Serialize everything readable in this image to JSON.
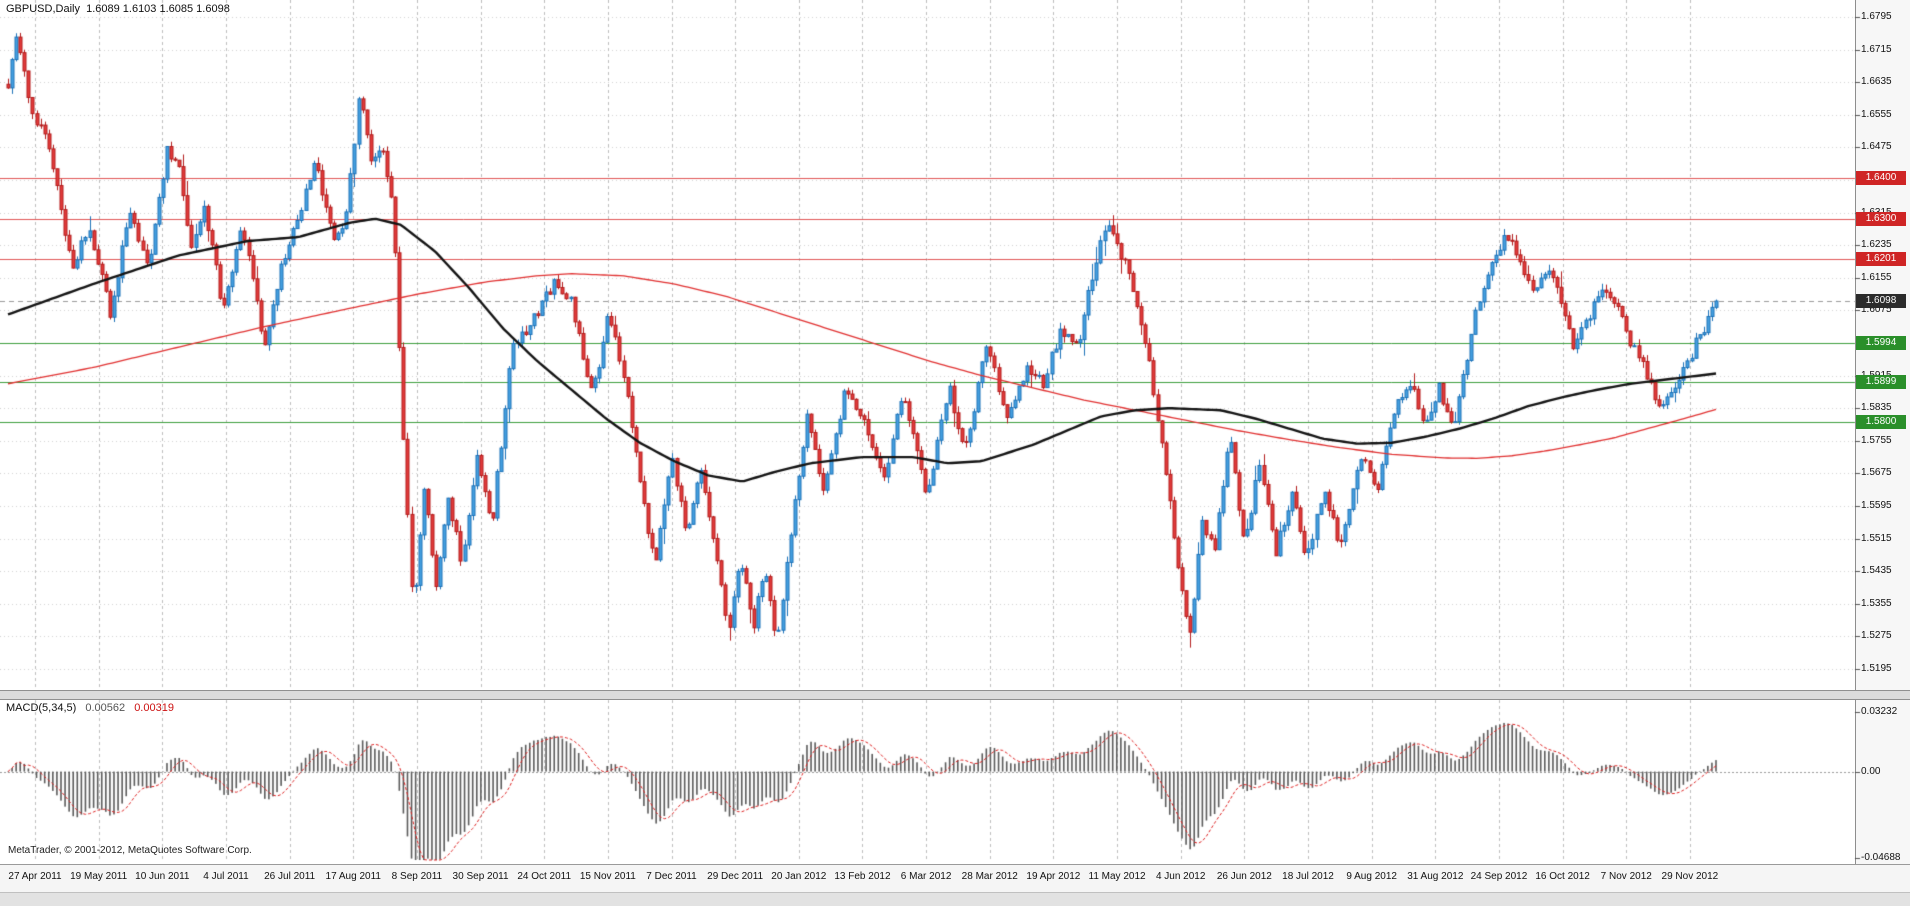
{
  "chart_data": {
    "type": "candlestick",
    "symbol": "GBPUSD",
    "timeframe": "Daily",
    "title_line": "GBPUSD,Daily  1.6089 1.6103 1.6085 1.6098",
    "ohlc": {
      "open": "1.6089",
      "high": "1.6103",
      "low": "1.6085",
      "close": "1.6098"
    },
    "copyright": "MetaTrader, © 2001-2012, MetaQuotes Software Corp.",
    "num_candles": 420,
    "price_axis": {
      "min": 1.5195,
      "max": 1.6795,
      "grid_step": 0.008,
      "tick_labels": [
        "1.6795",
        "1.6715",
        "1.6635",
        "1.6555",
        "1.6475",
        "1.6315",
        "1.6235",
        "1.6155",
        "1.6075",
        "1.5915",
        "1.5835",
        "1.5755",
        "1.5675",
        "1.5595",
        "1.5515",
        "1.5435",
        "1.5355",
        "1.5275",
        "1.5195"
      ]
    },
    "levels": [
      {
        "price": 1.64,
        "label": "1.6400",
        "line_color": "#e05555",
        "box_color": "#cf2525",
        "kind": "resistance"
      },
      {
        "price": 1.63,
        "label": "1.6300",
        "line_color": "#e05555",
        "box_color": "#cf2525",
        "kind": "resistance"
      },
      {
        "price": 1.6201,
        "label": "1.6201",
        "line_color": "#e05555",
        "box_color": "#cf2525",
        "kind": "resistance"
      },
      {
        "price": 1.5994,
        "label": "1.5994",
        "line_color": "#3d9e3d",
        "box_color": "#2a8f2a",
        "kind": "support"
      },
      {
        "price": 1.5899,
        "label": "1.5899",
        "line_color": "#3d9e3d",
        "box_color": "#2a8f2a",
        "kind": "support"
      },
      {
        "price": 1.58,
        "label": "1.5800",
        "line_color": "#3d9e3d",
        "box_color": "#2a8f2a",
        "kind": "support"
      }
    ],
    "current_price": {
      "value": 1.6098,
      "label": "1.6098",
      "box_color": "#2b2b2b",
      "line_color": "#9a9a9a"
    },
    "dates": [
      "27 Apr 2011",
      "19 May 2011",
      "10 Jun 2011",
      "4 Jul 2011",
      "26 Jul 2011",
      "17 Aug 2011",
      "8 Sep 2011",
      "30 Sep 2011",
      "24 Oct 2011",
      "15 Nov 2011",
      "7 Dec 2011",
      "29 Dec 2011",
      "20 Jan 2012",
      "13 Feb 2012",
      "6 Mar 2012",
      "28 Mar 2012",
      "19 Apr 2012",
      "11 May 2012",
      "4 Jun 2012",
      "26 Jun 2012",
      "18 Jul 2012",
      "9 Aug 2012",
      "31 Aug 2012",
      "24 Sep 2012",
      "16 Oct 2012",
      "7 Nov 2012",
      "29 Nov 2012"
    ],
    "colors": {
      "up_fill": "#46a0e0",
      "up_border": "#1c72b8",
      "down_fill": "#e23b3b",
      "down_border": "#b31d1d",
      "ma_black": "#141414",
      "ma_red": "#e03030",
      "grid_v": "#bdbdbd",
      "grid_h": "#d0d0d0",
      "macd_hist": "#5a5a5a",
      "macd_signal": "#dd2222",
      "axis_text": "#111111"
    },
    "price_path": [
      [
        0.0,
        1.663
      ],
      [
        0.005,
        1.6745
      ],
      [
        0.014,
        1.656
      ],
      [
        0.022,
        1.651
      ],
      [
        0.038,
        1.617
      ],
      [
        0.047,
        1.629
      ],
      [
        0.06,
        1.6065
      ],
      [
        0.071,
        1.632
      ],
      [
        0.082,
        1.618
      ],
      [
        0.093,
        1.647
      ],
      [
        0.1,
        1.642
      ],
      [
        0.107,
        1.622
      ],
      [
        0.115,
        1.633
      ],
      [
        0.126,
        1.6075
      ],
      [
        0.137,
        1.628
      ],
      [
        0.15,
        1.599
      ],
      [
        0.16,
        1.618
      ],
      [
        0.17,
        1.63
      ],
      [
        0.18,
        1.644
      ],
      [
        0.19,
        1.625
      ],
      [
        0.198,
        1.63
      ],
      [
        0.206,
        1.6618
      ],
      [
        0.212,
        1.645
      ],
      [
        0.219,
        1.648
      ],
      [
        0.226,
        1.63
      ],
      [
        0.231,
        1.58
      ],
      [
        0.237,
        1.5335
      ],
      [
        0.244,
        1.565
      ],
      [
        0.25,
        1.539
      ],
      [
        0.258,
        1.561
      ],
      [
        0.266,
        1.545
      ],
      [
        0.274,
        1.572
      ],
      [
        0.283,
        1.554
      ],
      [
        0.295,
        1.598
      ],
      [
        0.308,
        1.606
      ],
      [
        0.32,
        1.614
      ],
      [
        0.33,
        1.609
      ],
      [
        0.342,
        1.586
      ],
      [
        0.352,
        1.607
      ],
      [
        0.362,
        1.589
      ],
      [
        0.372,
        1.56
      ],
      [
        0.379,
        1.544
      ],
      [
        0.388,
        1.572
      ],
      [
        0.397,
        1.553
      ],
      [
        0.406,
        1.57
      ],
      [
        0.414,
        1.548
      ],
      [
        0.422,
        1.529
      ],
      [
        0.429,
        1.547
      ],
      [
        0.436,
        1.529
      ],
      [
        0.443,
        1.546
      ],
      [
        0.45,
        1.524
      ],
      [
        0.458,
        1.552
      ],
      [
        0.468,
        1.583
      ],
      [
        0.477,
        1.563
      ],
      [
        0.49,
        1.588
      ],
      [
        0.502,
        1.579
      ],
      [
        0.513,
        1.566
      ],
      [
        0.524,
        1.588
      ],
      [
        0.538,
        1.5625
      ],
      [
        0.551,
        1.588
      ],
      [
        0.56,
        1.572
      ],
      [
        0.573,
        1.5995
      ],
      [
        0.584,
        1.5815
      ],
      [
        0.597,
        1.594
      ],
      [
        0.606,
        1.589
      ],
      [
        0.616,
        1.603
      ],
      [
        0.626,
        1.598
      ],
      [
        0.636,
        1.618
      ],
      [
        0.644,
        1.6298
      ],
      [
        0.652,
        1.621
      ],
      [
        0.66,
        1.612
      ],
      [
        0.668,
        1.595
      ],
      [
        0.677,
        1.57
      ],
      [
        0.685,
        1.545
      ],
      [
        0.692,
        1.527
      ],
      [
        0.699,
        1.556
      ],
      [
        0.706,
        1.548
      ],
      [
        0.715,
        1.577
      ],
      [
        0.724,
        1.55
      ],
      [
        0.733,
        1.571
      ],
      [
        0.742,
        1.548
      ],
      [
        0.752,
        1.563
      ],
      [
        0.76,
        1.546
      ],
      [
        0.77,
        1.564
      ],
      [
        0.78,
        1.549
      ],
      [
        0.792,
        1.572
      ],
      [
        0.801,
        1.563
      ],
      [
        0.812,
        1.583
      ],
      [
        0.82,
        1.5905
      ],
      [
        0.83,
        1.58
      ],
      [
        0.838,
        1.5885
      ],
      [
        0.846,
        1.577
      ],
      [
        0.858,
        1.605
      ],
      [
        0.868,
        1.618
      ],
      [
        0.877,
        1.627
      ],
      [
        0.884,
        1.62
      ],
      [
        0.893,
        1.612
      ],
      [
        0.9,
        1.618
      ],
      [
        0.908,
        1.613
      ],
      [
        0.916,
        1.5985
      ],
      [
        0.925,
        1.606
      ],
      [
        0.933,
        1.613
      ],
      [
        0.941,
        1.609
      ],
      [
        0.95,
        1.6
      ],
      [
        0.958,
        1.593
      ],
      [
        0.966,
        1.5835
      ],
      [
        0.974,
        1.587
      ],
      [
        0.982,
        1.594
      ],
      [
        0.99,
        1.601
      ],
      [
        1.0,
        1.6098
      ]
    ],
    "black_ma_path": [
      [
        0.0,
        1.6065
      ],
      [
        0.05,
        1.614
      ],
      [
        0.1,
        1.621
      ],
      [
        0.14,
        1.6245
      ],
      [
        0.17,
        1.6255
      ],
      [
        0.2,
        1.629
      ],
      [
        0.215,
        1.63
      ],
      [
        0.23,
        1.6285
      ],
      [
        0.25,
        1.622
      ],
      [
        0.27,
        1.613
      ],
      [
        0.29,
        1.603
      ],
      [
        0.31,
        1.595
      ],
      [
        0.33,
        1.588
      ],
      [
        0.35,
        1.581
      ],
      [
        0.37,
        1.575
      ],
      [
        0.39,
        1.5705
      ],
      [
        0.41,
        1.567
      ],
      [
        0.43,
        1.5655
      ],
      [
        0.45,
        1.568
      ],
      [
        0.47,
        1.57
      ],
      [
        0.5,
        1.5715
      ],
      [
        0.53,
        1.5715
      ],
      [
        0.55,
        1.57
      ],
      [
        0.57,
        1.5705
      ],
      [
        0.6,
        1.5745
      ],
      [
        0.62,
        1.578
      ],
      [
        0.64,
        1.5815
      ],
      [
        0.66,
        1.583
      ],
      [
        0.68,
        1.5835
      ],
      [
        0.71,
        1.583
      ],
      [
        0.73,
        1.581
      ],
      [
        0.75,
        1.5785
      ],
      [
        0.77,
        1.576
      ],
      [
        0.79,
        1.5748
      ],
      [
        0.81,
        1.575
      ],
      [
        0.83,
        1.5765
      ],
      [
        0.85,
        1.5785
      ],
      [
        0.87,
        1.581
      ],
      [
        0.89,
        1.584
      ],
      [
        0.91,
        1.5862
      ],
      [
        0.93,
        1.588
      ],
      [
        0.95,
        1.5895
      ],
      [
        0.97,
        1.5905
      ],
      [
        1.0,
        1.592
      ]
    ],
    "red_ma_path": [
      [
        0.0,
        1.5895
      ],
      [
        0.05,
        1.5935
      ],
      [
        0.1,
        1.5985
      ],
      [
        0.15,
        1.6035
      ],
      [
        0.2,
        1.608
      ],
      [
        0.24,
        1.6115
      ],
      [
        0.28,
        1.6145
      ],
      [
        0.31,
        1.616
      ],
      [
        0.33,
        1.6165
      ],
      [
        0.36,
        1.616
      ],
      [
        0.39,
        1.614
      ],
      [
        0.42,
        1.611
      ],
      [
        0.45,
        1.607
      ],
      [
        0.48,
        1.603
      ],
      [
        0.51,
        1.599
      ],
      [
        0.54,
        1.595
      ],
      [
        0.57,
        1.5915
      ],
      [
        0.6,
        1.5885
      ],
      [
        0.63,
        1.5855
      ],
      [
        0.66,
        1.583
      ],
      [
        0.69,
        1.5805
      ],
      [
        0.72,
        1.578
      ],
      [
        0.75,
        1.5758
      ],
      [
        0.78,
        1.5738
      ],
      [
        0.81,
        1.5722
      ],
      [
        0.84,
        1.5713
      ],
      [
        0.86,
        1.5712
      ],
      [
        0.88,
        1.5718
      ],
      [
        0.9,
        1.573
      ],
      [
        0.92,
        1.5745
      ],
      [
        0.94,
        1.5762
      ],
      [
        0.96,
        1.5785
      ],
      [
        0.98,
        1.5808
      ],
      [
        1.0,
        1.5832
      ]
    ],
    "macd": {
      "label": "MACD(5,34,5)",
      "value_main": "0.00562",
      "value_signal": "0.00319",
      "fast": 5,
      "slow": 34,
      "signal": 5,
      "axis_max": 0.03232,
      "axis_min": -0.04688,
      "axis_labels": [
        {
          "text": "0.03232",
          "value": 0.03232
        },
        {
          "text": "0.00",
          "value": 0
        },
        {
          "text": "-0.04688",
          "value": -0.04688
        }
      ]
    }
  }
}
